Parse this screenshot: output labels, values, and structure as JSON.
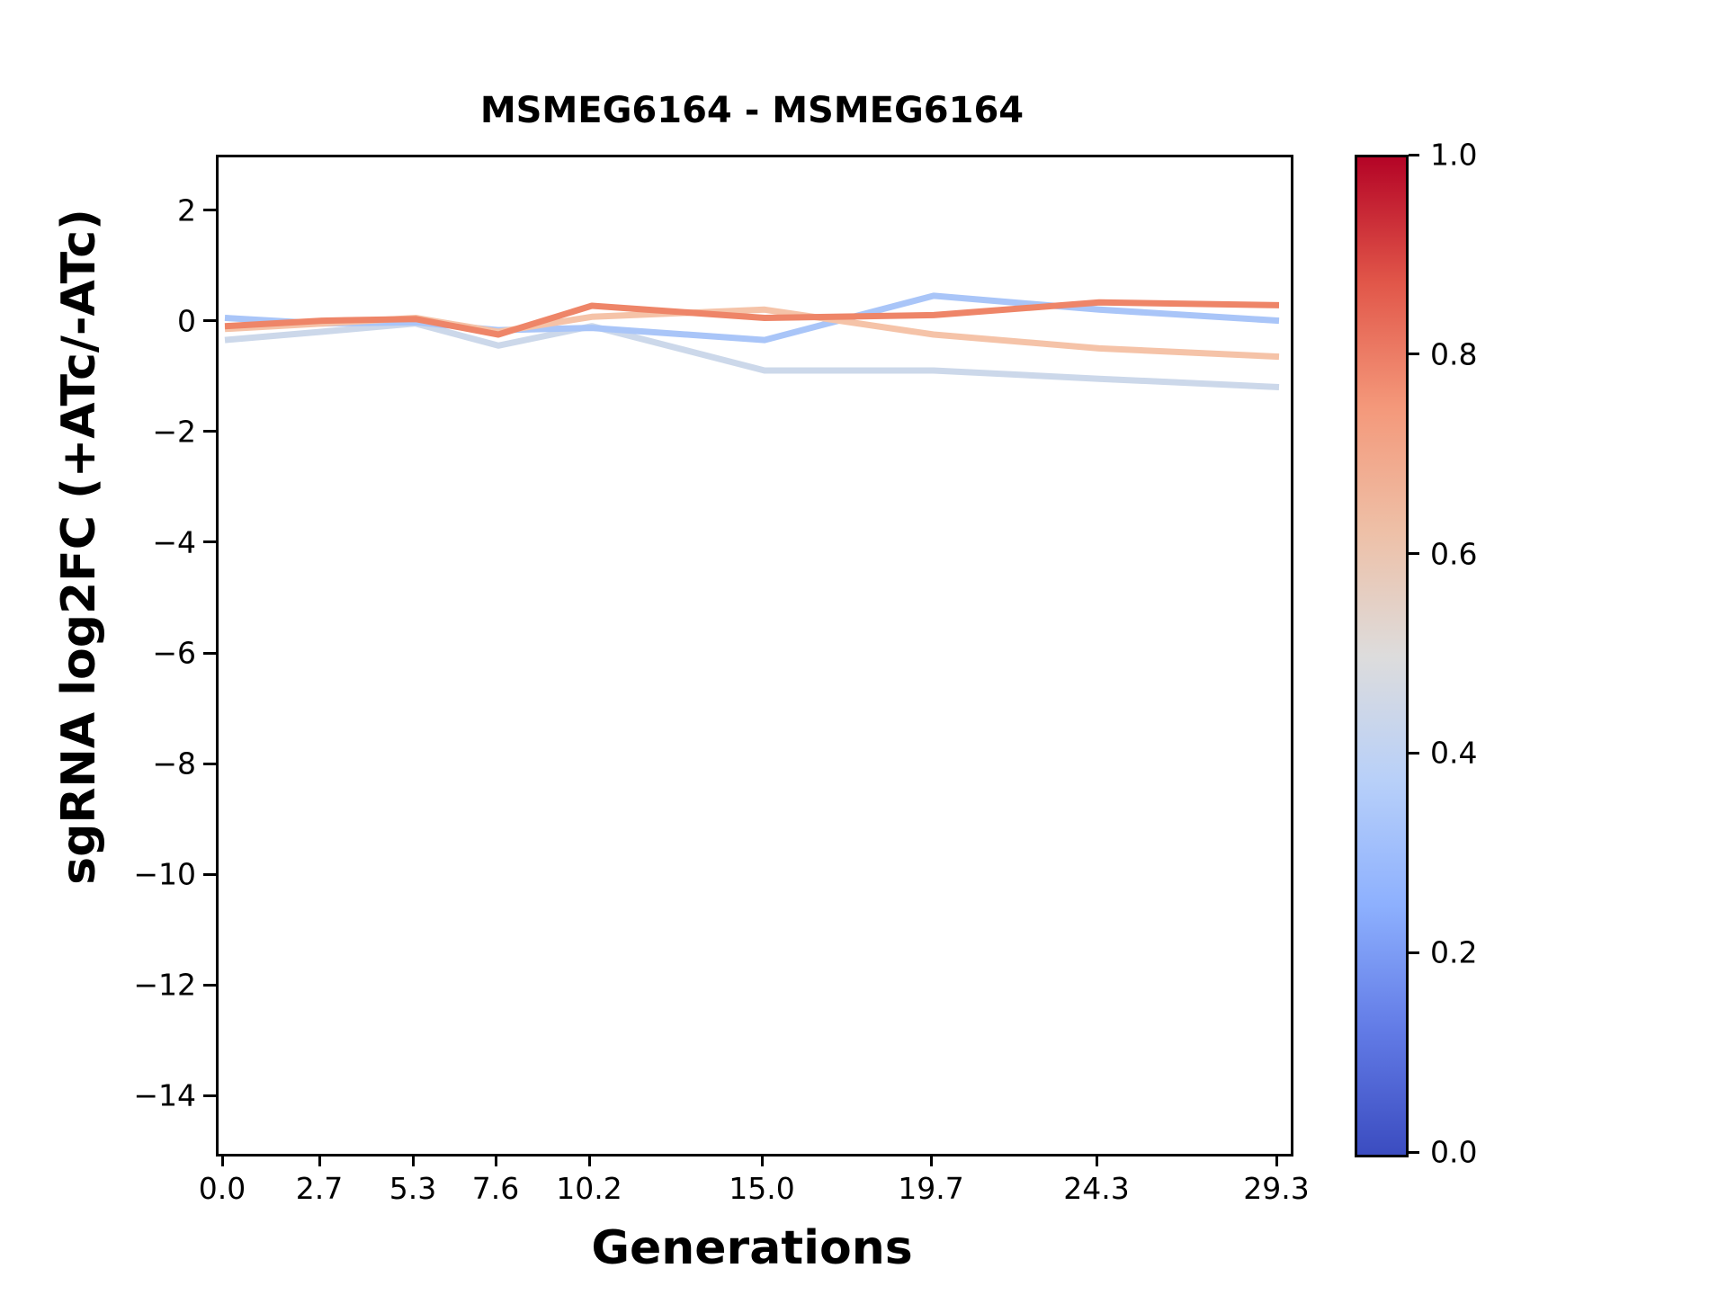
{
  "chart_data": {
    "type": "line",
    "title": "MSMEG6164 - MSMEG6164",
    "xlabel": "Generations",
    "ylabel": "sgRNA log2FC (+ATc/-ATc)",
    "grid": false,
    "legend": "none (colorbar only)",
    "x": [
      0.0,
      2.7,
      5.3,
      7.6,
      10.2,
      15.0,
      19.7,
      24.3,
      29.3
    ],
    "xtick_labels": [
      "0.0",
      "2.7",
      "5.3",
      "7.6",
      "10.2",
      "15.0",
      "19.7",
      "24.3",
      "29.3"
    ],
    "ytick_values": [
      2,
      0,
      -2,
      -4,
      -6,
      -8,
      -10,
      -12,
      -14
    ],
    "ytick_labels": [
      "2",
      "0",
      "−2",
      "−4",
      "−6",
      "−8",
      "−10",
      "−12",
      "−14"
    ],
    "xlim": [
      -0.175,
      29.625
    ],
    "ylim": [
      -15,
      3
    ],
    "series": [
      {
        "name": "pale-blue-line",
        "color": "#ccd8ea",
        "color_value": 0.45,
        "values": [
          -0.3,
          -0.15,
          0.0,
          -0.4,
          -0.05,
          -0.85,
          -0.85,
          -1.0,
          -1.15
        ]
      },
      {
        "name": "blue-line",
        "color": "#a9c5f8",
        "color_value": 0.35,
        "values": [
          0.1,
          0.0,
          0.02,
          -0.12,
          -0.08,
          -0.3,
          0.5,
          0.25,
          0.05
        ]
      },
      {
        "name": "peach-line",
        "color": "#f5c3a8",
        "color_value": 0.62,
        "values": [
          -0.1,
          0.0,
          0.1,
          -0.15,
          0.12,
          0.25,
          -0.2,
          -0.45,
          -0.6
        ]
      },
      {
        "name": "orange-line",
        "color": "#ee8568",
        "color_value": 0.78,
        "values": [
          -0.05,
          0.05,
          0.08,
          -0.2,
          0.32,
          0.1,
          0.15,
          0.38,
          0.33
        ]
      }
    ],
    "colorbar": {
      "colormap": "coolwarm",
      "min": 0.0,
      "max": 1.0,
      "tick_labels": [
        "1.0",
        "0.8",
        "0.6",
        "0.4",
        "0.2",
        "0.0"
      ],
      "tick_values": [
        1.0,
        0.8,
        0.6,
        0.4,
        0.2,
        0.0
      ]
    }
  }
}
